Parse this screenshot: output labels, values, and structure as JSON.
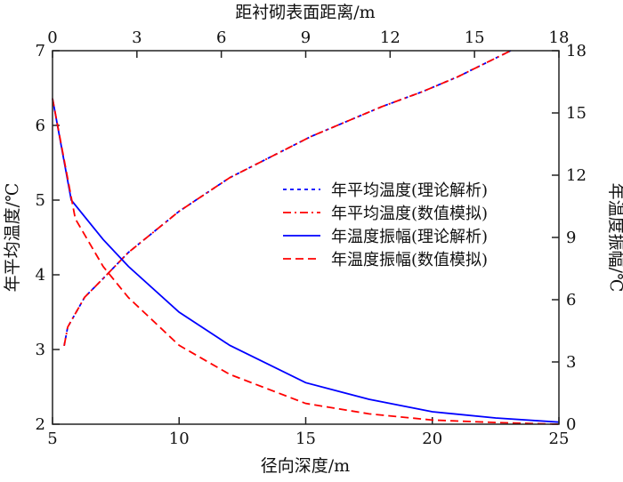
{
  "chart_data": {
    "type": "line",
    "xlabel": "径向深度/m",
    "x2label": "距衬砌表面距离/m",
    "ylabel": "年平均温度/℃",
    "y2label": "年温度振幅/℃",
    "xlim": [
      5,
      25
    ],
    "x2lim": [
      0,
      18
    ],
    "ylim": [
      2,
      7
    ],
    "y2lim": [
      0,
      18
    ],
    "xticks": [
      "5",
      "10",
      "15",
      "20",
      "25"
    ],
    "x2ticks": [
      "0",
      "3",
      "6",
      "9",
      "12",
      "15",
      "18"
    ],
    "yticks": [
      "2",
      "3",
      "4",
      "5",
      "6",
      "7"
    ],
    "y2ticks": [
      "0",
      "3",
      "6",
      "9",
      "12",
      "15",
      "18"
    ],
    "legend_position": "center-right",
    "series": [
      {
        "name": "年平均温度(理论解析)",
        "axis": "left",
        "color": "#0000ff",
        "style": "dotted",
        "x": [
          5.46,
          5.6,
          6.27,
          7,
          8,
          10,
          12,
          15.2,
          18,
          19.6,
          21,
          23.1
        ],
        "y": [
          3.05,
          3.3,
          3.7,
          3.95,
          4.3,
          4.85,
          5.3,
          5.85,
          6.25,
          6.45,
          6.65,
          7.0
        ]
      },
      {
        "name": "年平均温度(数值模拟)",
        "axis": "left",
        "color": "#ff0000",
        "style": "dashdot",
        "x": [
          5.46,
          5.6,
          6.27,
          7,
          8,
          10,
          12,
          15.2,
          18,
          19.6,
          21,
          23.1
        ],
        "y": [
          3.05,
          3.3,
          3.7,
          3.95,
          4.3,
          4.85,
          5.3,
          5.85,
          6.25,
          6.45,
          6.65,
          7.0
        ]
      },
      {
        "name": "年温度振幅(理论解析)",
        "axis": "right",
        "color": "#0000ff",
        "style": "solid",
        "x": [
          5,
          5.74,
          7,
          8,
          10,
          12,
          15,
          17.5,
          20,
          22.5,
          25
        ],
        "y": [
          15.7,
          10.8,
          8.9,
          7.6,
          5.4,
          3.8,
          2.0,
          1.2,
          0.6,
          0.3,
          0.1
        ]
      },
      {
        "name": "年温度振幅(数值模拟)",
        "axis": "right",
        "color": "#ff0000",
        "style": "dashed",
        "x": [
          5,
          5.9,
          7,
          8,
          10,
          12,
          15,
          17.5,
          20,
          22.5,
          25
        ],
        "y": [
          15.7,
          9.9,
          7.6,
          6.1,
          3.8,
          2.4,
          1.0,
          0.5,
          0.2,
          0.08,
          0.0
        ]
      }
    ]
  }
}
